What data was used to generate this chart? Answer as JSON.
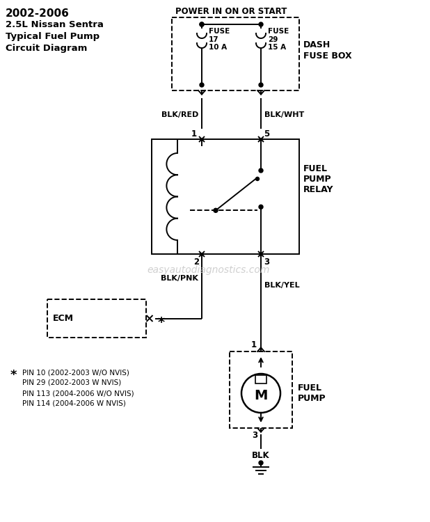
{
  "title_lines": [
    "2002-2006",
    "2.5L Nissan Sentra",
    "Typical Fuel Pump",
    "Circuit Diagram"
  ],
  "power_label": "POWER IN ON OR START",
  "dash_fuse_box_label": "DASH\nFUSE BOX",
  "fuel_pump_relay_label": "FUEL\nPUMP\nRELAY",
  "fuel_pump_label": "FUEL\nPUMP",
  "ecm_label": "ECM",
  "blk_red": "BLK/RED",
  "blk_wht": "BLK/WHT",
  "blk_pnk": "BLK/PNK",
  "blk_yel": "BLK/YEL",
  "blk": "BLK",
  "fuse1_label": "FUSE\n17\n10 A",
  "fuse2_label": "FUSE\n29\n15 A",
  "pin_note_star": "★",
  "pin_notes": [
    "PIN 10 (2002-2003 W/O NVIS)",
    "PIN 29 (2002-2003 W NVIS)",
    "PIN 113 (2004-2006 W/O NVIS)",
    "PIN 114 (2004-2006 W NVIS)"
  ],
  "watermark": "easyautodiagnostics.com",
  "bg_color": "#ffffff",
  "lc": "#000000",
  "tc": "#000000",
  "wc": "#c8c8c8",
  "lw": 1.4
}
